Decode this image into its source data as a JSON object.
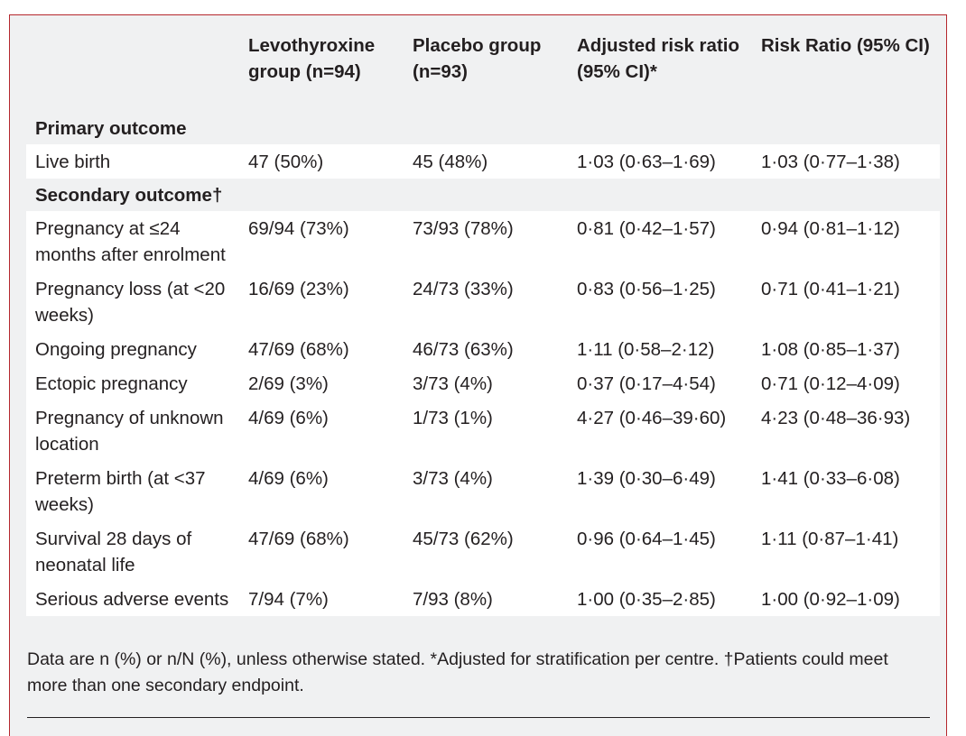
{
  "table": {
    "headers": [
      "",
      "Levothyroxine group (n=94)",
      "Placebo group (n=93)",
      "Adjusted risk ratio (95% CI)*",
      "Risk Ratio (95% CI)"
    ],
    "primary_label": "Primary outcome",
    "primary_rows": [
      [
        "Live birth",
        "47 (50%)",
        "45 (48%)",
        "1·03 (0·63–1·69)",
        "1·03 (0·77–1·38)"
      ]
    ],
    "secondary_label": "Secondary outcome†",
    "secondary_rows": [
      [
        "Pregnancy at ≤24 months after enrolment",
        "69/94 (73%)",
        "73/93 (78%)",
        "0·81 (0·42–1·57)",
        "0·94 (0·81–1·12)"
      ],
      [
        "Pregnancy loss (at <20 weeks)",
        "16/69 (23%)",
        "24/73 (33%)",
        "0·83 (0·56–1·25)",
        "0·71 (0·41–1·21)"
      ],
      [
        "Ongoing pregnancy",
        "47/69 (68%)",
        "46/73 (63%)",
        "1·11 (0·58–2·12)",
        "1·08 (0·85–1·37)"
      ],
      [
        "Ectopic pregnancy",
        "2/69 (3%)",
        "3/73 (4%)",
        "0·37 (0·17–4·54)",
        "0·71 (0·12–4·09)"
      ],
      [
        "Pregnancy of unknown location",
        "4/69 (6%)",
        "1/73 (1%)",
        "4·27 (0·46–39·60)",
        "4·23 (0·48–36·93)"
      ],
      [
        "Preterm birth (at <37 weeks)",
        "4/69 (6%)",
        "3/73 (4%)",
        "1·39 (0·30–6·49)",
        "1·41 (0·33–6·08)"
      ],
      [
        "Survival 28 days of neonatal life",
        "47/69 (68%)",
        "45/73 (62%)",
        "0·96 (0·64–1·45)",
        "1·11 (0·87–1·41)"
      ],
      [
        "Serious adverse events",
        "7/94 (7%)",
        "7/93 (8%)",
        "1·00 (0·35–2·85)",
        "1·00 (0·92–1·09)"
      ]
    ]
  },
  "footnote": "Data are n (%) or n/N (%), unless otherwise stated. *Adjusted for stratification per centre. †Patients could meet more than one secondary endpoint.",
  "colors": {
    "frame_border": "#b5272d",
    "band": "#f0f1f2",
    "white_row": "#ffffff"
  }
}
